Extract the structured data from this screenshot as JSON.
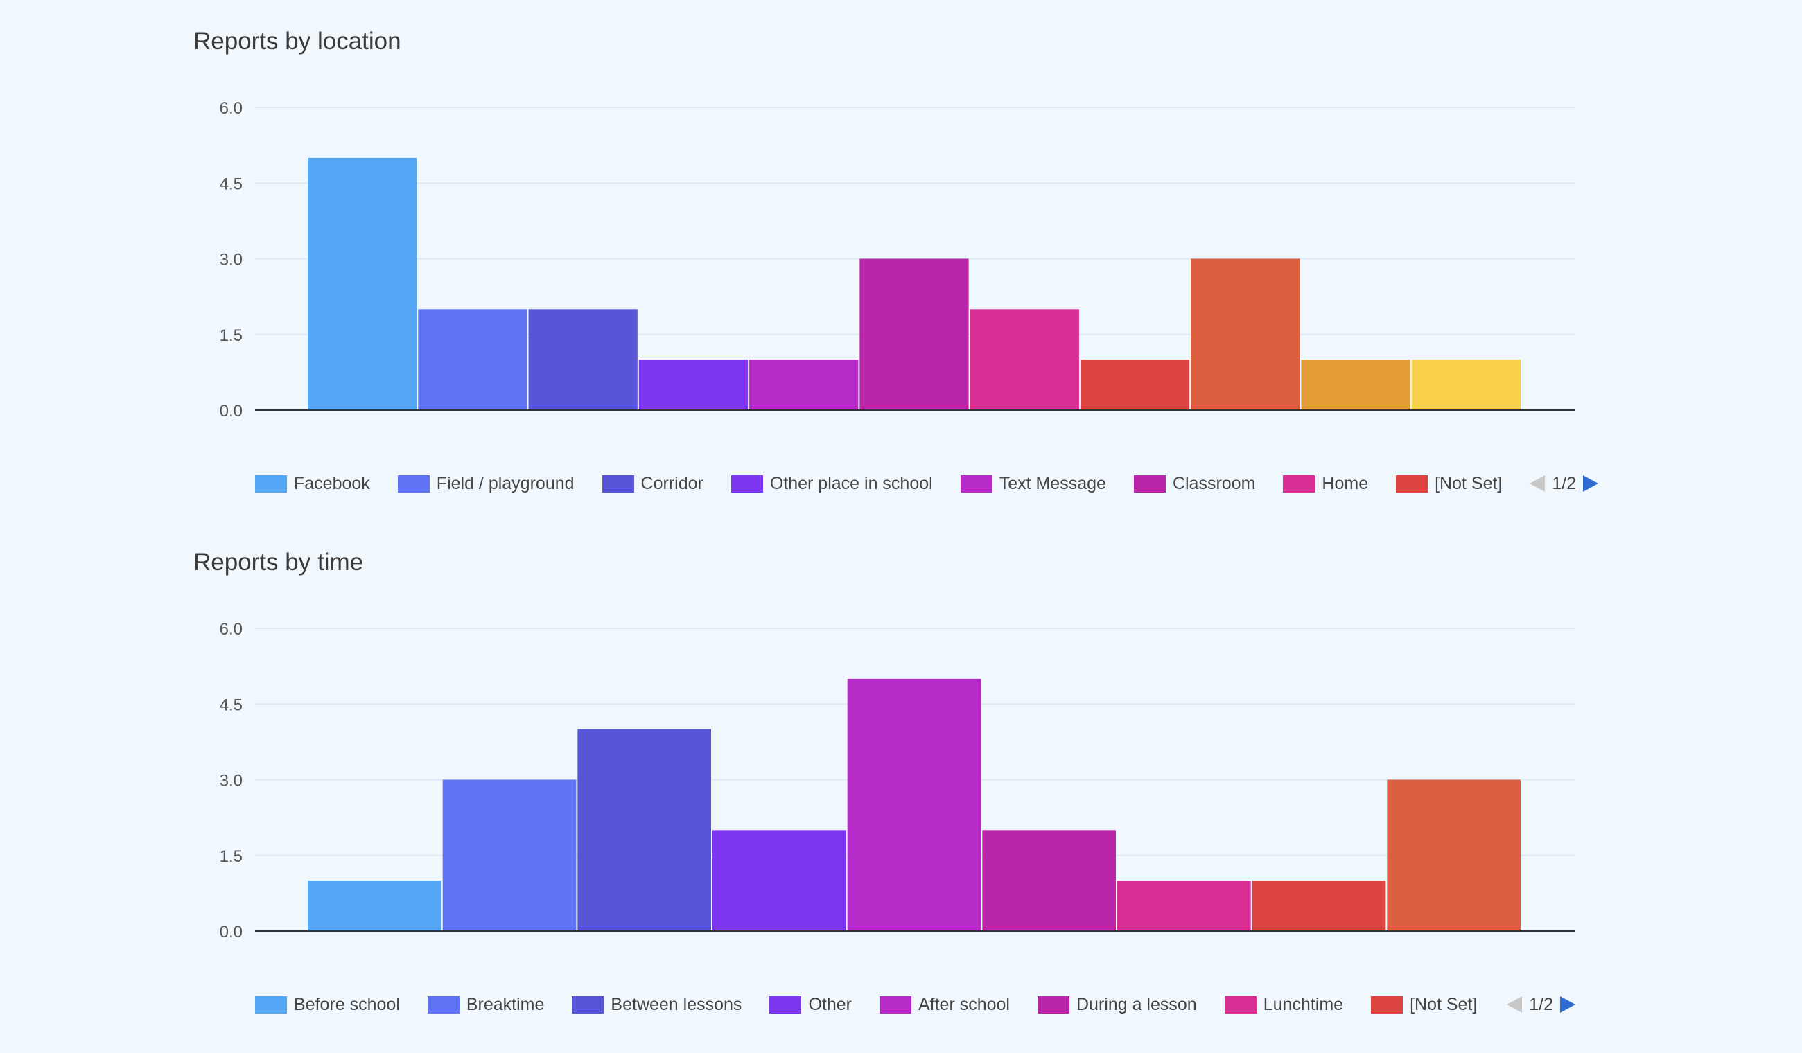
{
  "charts": [
    {
      "title": "Reports by location",
      "pager": "1/2",
      "legend": [
        {
          "label": "Facebook",
          "color": "#57a7f7"
        },
        {
          "label": "Field / playground",
          "color": "#5f74f4"
        },
        {
          "label": "Corridor",
          "color": "#5856d6"
        },
        {
          "label": "Other place in school",
          "color": "#7e37f0"
        },
        {
          "label": "Text Message",
          "color": "#b72bc9"
        },
        {
          "label": "Classroom",
          "color": "#b926a7"
        },
        {
          "label": "Home",
          "color": "#d92e94"
        },
        {
          "label": "[Not Set]",
          "color": "#dd4440"
        }
      ]
    },
    {
      "title": "Reports by time",
      "pager": "1/2",
      "legend": [
        {
          "label": "Before school",
          "color": "#57a7f7"
        },
        {
          "label": "Breaktime",
          "color": "#5f74f4"
        },
        {
          "label": "Between lessons",
          "color": "#5856d6"
        },
        {
          "label": "Other",
          "color": "#7e37f0"
        },
        {
          "label": "After school",
          "color": "#b72bc9"
        },
        {
          "label": "During a lesson",
          "color": "#b926a7"
        },
        {
          "label": "Lunchtime",
          "color": "#d92e94"
        },
        {
          "label": "[Not Set]",
          "color": "#dd4440"
        }
      ]
    }
  ],
  "chart_data": [
    {
      "type": "bar",
      "title": "Reports by location",
      "ylim": [
        0,
        6
      ],
      "yticks": [
        "0.0",
        "1.5",
        "3.0",
        "4.5",
        "6.0"
      ],
      "grid": true,
      "legend_position": "bottom",
      "values": [
        5,
        2,
        2,
        1,
        1,
        3,
        2,
        1,
        3,
        1,
        1
      ],
      "colors": [
        "#57a7f7",
        "#5f74f4",
        "#5856d6",
        "#7e37f0",
        "#b72bc9",
        "#b926a7",
        "#d92e94",
        "#dd4440",
        "#de5f40",
        "#e39c38",
        "#f7cf48"
      ]
    },
    {
      "type": "bar",
      "title": "Reports by time",
      "ylim": [
        0,
        6
      ],
      "yticks": [
        "0.0",
        "1.5",
        "3.0",
        "4.5",
        "6.0"
      ],
      "grid": true,
      "legend_position": "bottom",
      "values": [
        1,
        3,
        4,
        2,
        5,
        2,
        1,
        1,
        3
      ],
      "colors": [
        "#57a7f7",
        "#5f74f4",
        "#5856d6",
        "#7e37f0",
        "#b72bc9",
        "#b926a7",
        "#d92e94",
        "#dd4440",
        "#de5f40"
      ]
    }
  ]
}
